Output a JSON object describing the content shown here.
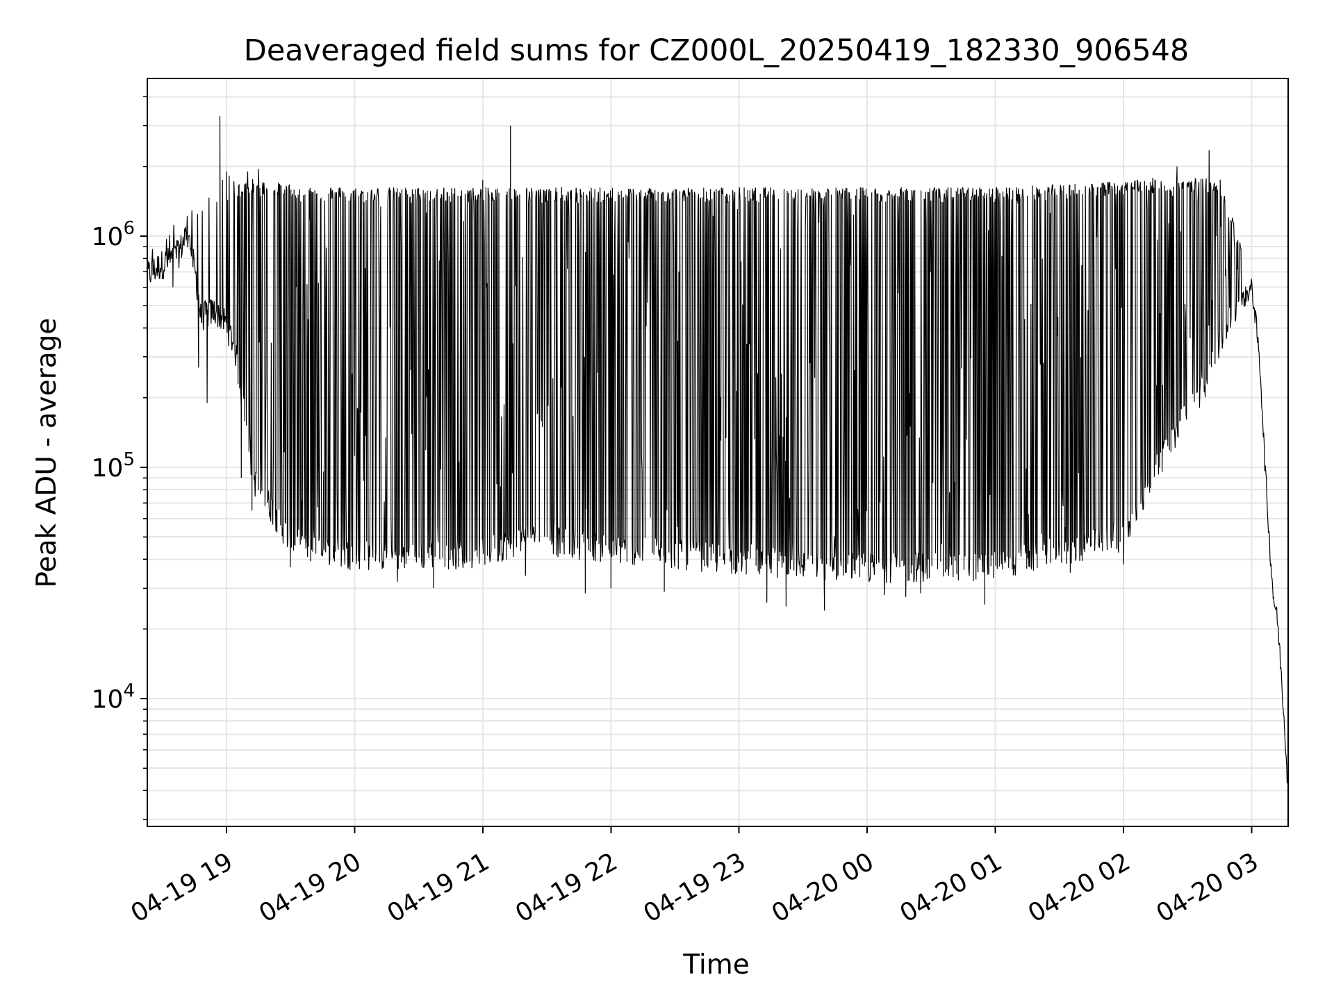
{
  "chart_data": {
    "type": "line",
    "title": "Deaveraged field sums for CZ000L_20250419_182330_906548",
    "xlabel": "Time",
    "ylabel": "Peak ADU - average",
    "x_tick_labels": [
      "04-19 19",
      "04-19 20",
      "04-19 21",
      "04-19 22",
      "04-19 23",
      "04-20 00",
      "04-20 01",
      "04-20 02",
      "04-20 03"
    ],
    "x_ticks": [
      "2025-04-19 19:00",
      "2025-04-19 20:00",
      "2025-04-19 21:00",
      "2025-04-19 22:00",
      "2025-04-19 23:00",
      "2025-04-20 00:00",
      "2025-04-20 01:00",
      "2025-04-20 02:00",
      "2025-04-20 03:00"
    ],
    "xlim": [
      "2025-04-19 18:23",
      "2025-04-20 03:17"
    ],
    "y_scale": "log",
    "ylim": [
      2800,
      4800000
    ],
    "y_tick_values": [
      10000,
      100000,
      1000000
    ],
    "y_tick_labels": [
      {
        "base": "10",
        "exp": "4"
      },
      {
        "base": "10",
        "exp": "5"
      },
      {
        "base": "10",
        "exp": "6"
      }
    ],
    "grid": true,
    "line_color": "#000000",
    "series": [
      {
        "baseline": [
          [
            "2025-04-19 18:23",
            680000
          ],
          [
            "2025-04-19 18:30",
            760000
          ],
          [
            "2025-04-19 18:37",
            820000
          ],
          [
            "2025-04-19 18:42",
            1050000
          ],
          [
            "2025-04-19 18:46",
            650000
          ],
          [
            "2025-04-19 18:48",
            450000
          ],
          [
            "2025-04-19 18:55",
            480000
          ],
          [
            "2025-04-19 19:00",
            420000
          ],
          [
            "2025-04-19 19:04",
            330000
          ],
          [
            "2025-04-19 19:08",
            180000
          ],
          [
            "2025-04-19 19:12",
            95000
          ],
          [
            "2025-04-19 19:16",
            75000
          ],
          [
            "2025-04-19 19:20",
            70000
          ],
          [
            "2025-04-19 19:25",
            58000
          ],
          [
            "2025-04-19 19:30",
            48000
          ],
          [
            "2025-04-19 19:40",
            45000
          ],
          [
            "2025-04-19 20:00",
            42000
          ],
          [
            "2025-04-19 20:30",
            42000
          ],
          [
            "2025-04-19 21:00",
            43000
          ],
          [
            "2025-04-19 21:15",
            48000
          ],
          [
            "2025-04-19 21:25",
            55000
          ],
          [
            "2025-04-19 21:35",
            48000
          ],
          [
            "2025-04-19 22:00",
            45000
          ],
          [
            "2025-04-19 23:00",
            40000
          ],
          [
            "2025-04-20 00:00",
            37000
          ],
          [
            "2025-04-20 01:00",
            38000
          ],
          [
            "2025-04-20 02:00",
            50000
          ],
          [
            "2025-04-20 02:20",
            120000
          ],
          [
            "2025-04-20 02:40",
            250000
          ],
          [
            "2025-04-20 02:50",
            450000
          ],
          [
            "2025-04-20 03:00",
            600000
          ],
          [
            "2025-04-20 03:02",
            420000
          ],
          [
            "2025-04-20 03:04",
            260000
          ],
          [
            "2025-04-20 03:06",
            110000
          ],
          [
            "2025-04-20 03:08",
            52000
          ],
          [
            "2025-04-20 03:10",
            28000
          ],
          [
            "2025-04-20 03:12",
            22000
          ],
          [
            "2025-04-20 03:14",
            12000
          ],
          [
            "2025-04-20 03:16",
            6000
          ],
          [
            "2025-04-20 03:17",
            3900
          ]
        ],
        "envelope_top": [
          [
            "2025-04-19 18:23",
            820000
          ],
          [
            "2025-04-19 18:40",
            1000000
          ],
          [
            "2025-04-19 18:50",
            1300000
          ],
          [
            "2025-04-19 19:00",
            1500000
          ],
          [
            "2025-04-19 19:10",
            1700000
          ],
          [
            "2025-04-19 19:30",
            1600000
          ],
          [
            "2025-04-19 20:00",
            1550000
          ],
          [
            "2025-04-19 21:00",
            1550000
          ],
          [
            "2025-04-19 22:00",
            1550000
          ],
          [
            "2025-04-19 23:00",
            1550000
          ],
          [
            "2025-04-20 00:00",
            1550000
          ],
          [
            "2025-04-20 01:00",
            1550000
          ],
          [
            "2025-04-20 02:00",
            1650000
          ],
          [
            "2025-04-20 02:30",
            1800000
          ],
          [
            "2025-04-20 02:45",
            1700000
          ],
          [
            "2025-04-20 02:55",
            900000
          ],
          [
            "2025-04-20 03:00",
            620000
          ]
        ],
        "spikes": [
          [
            "2025-04-19 18:57",
            3300000
          ],
          [
            "2025-04-19 19:00",
            1900000
          ],
          [
            "2025-04-19 19:10",
            1900000
          ],
          [
            "2025-04-19 19:15",
            1950000
          ],
          [
            "2025-04-19 21:13",
            3000000
          ],
          [
            "2025-04-19 21:00",
            1750000
          ],
          [
            "2025-04-20 01:50",
            1700000
          ],
          [
            "2025-04-20 02:25",
            2000000
          ],
          [
            "2025-04-20 02:40",
            2350000
          ]
        ],
        "dips": [
          [
            "2025-04-19 18:35",
            600000
          ],
          [
            "2025-04-19 18:47",
            270000
          ],
          [
            "2025-04-19 18:51",
            190000
          ],
          [
            "2025-04-19 19:07",
            90000
          ],
          [
            "2025-04-19 19:12",
            65000
          ],
          [
            "2025-04-19 19:30",
            37000
          ],
          [
            "2025-04-19 20:20",
            32000
          ],
          [
            "2025-04-19 20:37",
            30000
          ],
          [
            "2025-04-19 21:20",
            34000
          ],
          [
            "2025-04-19 21:48",
            28500
          ],
          [
            "2025-04-19 22:00",
            30000
          ],
          [
            "2025-04-19 22:25",
            29000
          ],
          [
            "2025-04-19 23:13",
            26000
          ],
          [
            "2025-04-19 23:22",
            25000
          ],
          [
            "2025-04-19 23:40",
            24000
          ],
          [
            "2025-04-20 00:08",
            28000
          ],
          [
            "2025-04-20 00:18",
            27500
          ],
          [
            "2025-04-20 00:25",
            28500
          ],
          [
            "2025-04-20 00:55",
            25500
          ],
          [
            "2025-04-20 01:35",
            35000
          ],
          [
            "2025-04-20 02:00",
            38000
          ]
        ]
      }
    ]
  }
}
